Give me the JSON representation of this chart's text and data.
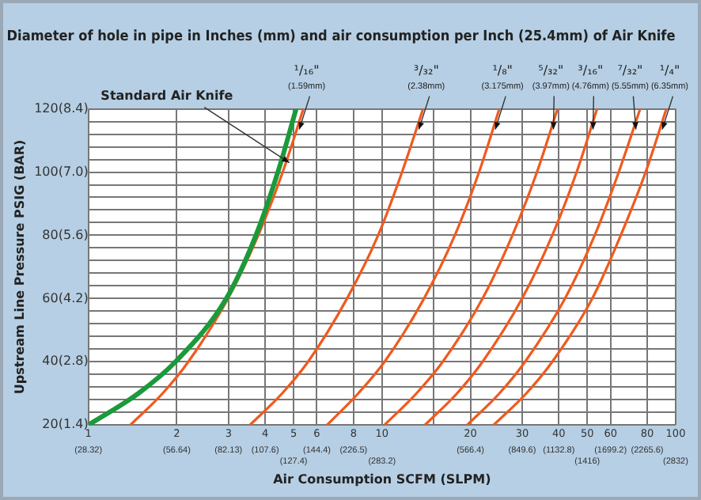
{
  "chart_data": {
    "type": "line",
    "title": "Diameter of hole in pipe in Inches (mm) and air consumption per Inch (25.4mm) of Air Knife",
    "xlabel": "Air Consumption SCFM (SLPM)",
    "ylabel": "Upstream Line Pressure PSIG (BAR)",
    "log": "x",
    "xlim": [
      1,
      100
    ],
    "ylim": [
      20,
      120
    ],
    "xticks": [
      1,
      2,
      3,
      4,
      5,
      6,
      8,
      10,
      {
        "value": 15,
        "label": null
      },
      20,
      30,
      40,
      50,
      60,
      80,
      100
    ],
    "annotations": [
      "(28.32)",
      "(56.64)",
      "(82.13)",
      "(107.6)",
      "(127.4)",
      "(144.4)",
      "(226.5)",
      "(283.2)",
      "(566.4)",
      "(849.6)",
      "(1132.8)",
      "(1416)",
      "(1699.2)",
      "(2265.6)",
      "(2832)"
    ],
    "yticks": [
      20,
      {
        "value": 24,
        "label": null
      },
      {
        "value": 28,
        "label": null
      },
      {
        "value": 32,
        "label": null
      },
      {
        "value": 36,
        "label": null
      },
      40,
      {
        "value": 44,
        "label": null
      },
      {
        "value": 48,
        "label": null
      },
      {
        "value": 52,
        "label": null
      },
      {
        "value": 56,
        "label": null
      },
      60,
      {
        "value": 64,
        "label": null
      },
      {
        "value": 68,
        "label": null
      },
      {
        "value": 72,
        "label": null
      },
      {
        "value": 76,
        "label": null
      },
      80,
      {
        "value": 84,
        "label": null
      },
      {
        "value": 88,
        "label": null
      },
      {
        "value": 92,
        "label": null
      },
      {
        "value": 96,
        "label": null
      },
      100,
      {
        "value": 104,
        "label": null
      },
      {
        "value": 108,
        "label": null
      },
      {
        "value": 112,
        "label": null
      },
      {
        "value": 116,
        "label": null
      },
      120
    ],
    "y2lim": [
      1.4,
      8.4
    ],
    "y2ticks": [
      {
        "value": 1.4,
        "label": "(1.4)"
      },
      {
        "value": 2.8,
        "label": "(2.8)"
      },
      {
        "value": 4.2,
        "label": "(4.2)"
      },
      {
        "value": 5.6,
        "label": "(5.6)"
      },
      {
        "value": 7.0,
        "label": "(7.0)"
      },
      {
        "value": 8.4,
        "label": "(8.4)"
      }
    ],
    "grid": true,
    "legend": false,
    "marker": "none",
    "line_style": "solid",
    "series": [
      {
        "name": "Standard Air Knife",
        "color": "#1a9a3a",
        "x": [
          1,
          1.48,
          1.98,
          2.95,
          3.72,
          4.42,
          5.1
        ],
        "values": [
          20,
          30,
          40,
          60,
          80,
          100,
          120
        ]
      },
      {
        "name": "¹/₁₆\" (1.59mm)",
        "color": "#f05a1e",
        "x": [
          1.39,
          1.79,
          2.19,
          2.99,
          3.79,
          4.59,
          5.4
        ],
        "values": [
          20,
          30,
          40,
          60,
          80,
          100,
          120
        ]
      },
      {
        "name": "³/₃₂\" (2.38mm)",
        "color": "#f05a1e",
        "x": [
          3.55,
          4.57,
          5.6,
          7.6,
          9.7,
          11.7,
          13.8
        ],
        "values": [
          20,
          30,
          40,
          60,
          80,
          100,
          120
        ]
      },
      {
        "name": "¹/₈\" (3.175mm)",
        "color": "#f05a1e",
        "x": [
          6.5,
          8.3,
          10.2,
          13.9,
          17.7,
          21.4,
          25.1
        ],
        "values": [
          20,
          30,
          40,
          60,
          80,
          100,
          120
        ]
      },
      {
        "name": "⁵/₃₂\" (3.97mm)",
        "color": "#f05a1e",
        "x": [
          10.2,
          13.1,
          16.1,
          22,
          27.8,
          33.7,
          39.6
        ],
        "values": [
          20,
          30,
          40,
          60,
          80,
          100,
          120
        ]
      },
      {
        "name": "³/₁₆\" (4.76mm)",
        "color": "#f05a1e",
        "x": [
          14,
          18,
          22,
          30,
          38,
          46,
          54
        ],
        "values": [
          20,
          30,
          40,
          60,
          80,
          100,
          120
        ]
      },
      {
        "name": "⁷/₃₂\" (5.55mm)",
        "color": "#f05a1e",
        "x": [
          19.5,
          25.1,
          30.7,
          42,
          53,
          64,
          75.7
        ],
        "values": [
          20,
          30,
          40,
          60,
          80,
          100,
          120
        ]
      },
      {
        "name": "¹/₄\" (6.35mm)",
        "color": "#f05a1e",
        "x": [
          24,
          31,
          38,
          52,
          65,
          79,
          93
        ],
        "values": [
          20,
          30,
          40,
          60,
          80,
          100,
          120
        ]
      }
    ]
  }
}
